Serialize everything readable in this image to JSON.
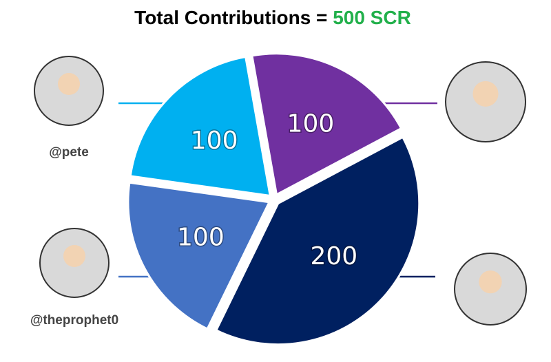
{
  "chart_data": {
    "type": "pie",
    "title": "Total Contributions =",
    "title_value": "500 SCR",
    "title_value_color": "#22b04b",
    "categories": [
      null,
      null,
      "@theprophet0",
      "@pete"
    ],
    "values": [
      100,
      200,
      100,
      100
    ],
    "colors": [
      "#7030a0",
      "#002060",
      "#4472c4",
      "#00b0f0"
    ]
  }
}
